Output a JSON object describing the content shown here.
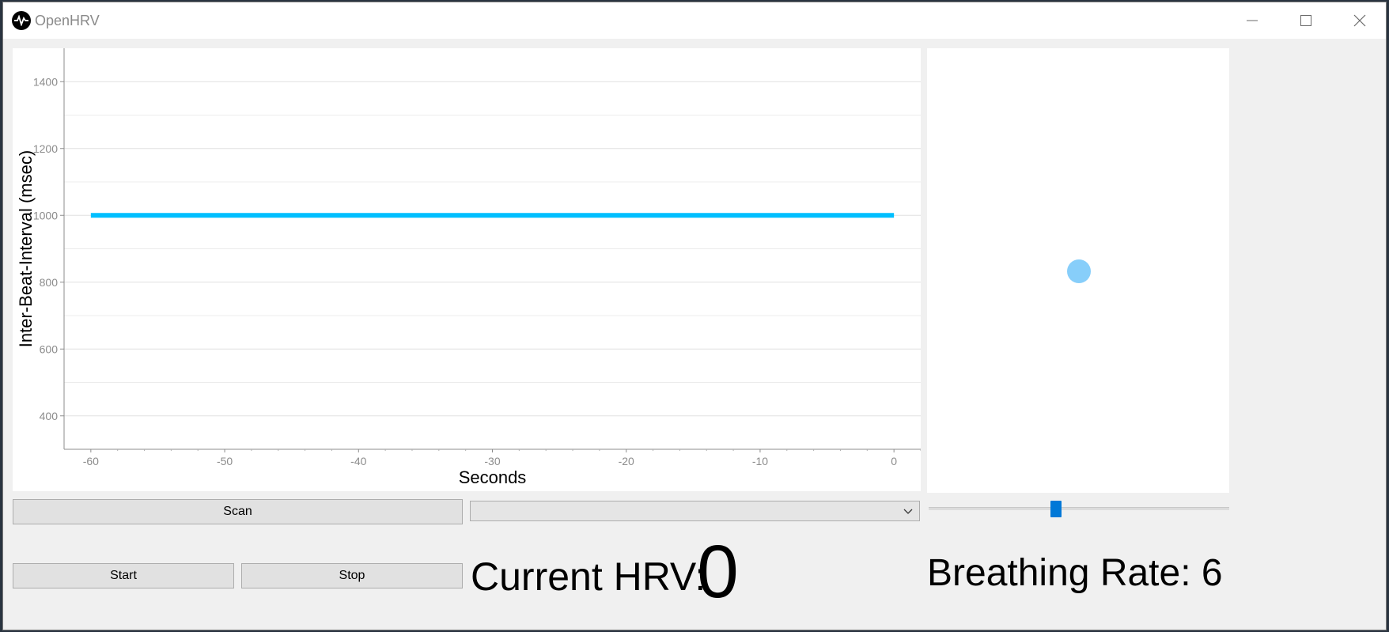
{
  "window": {
    "title": "OpenHRV",
    "controls": {
      "minimize": "minimize-icon",
      "maximize": "maximize-icon",
      "close": "close-icon"
    }
  },
  "chart_data": {
    "type": "line",
    "title": "",
    "xlabel": "Seconds",
    "ylabel": "Inter-Beat-Interval (msec)",
    "xlim": [
      -62,
      2
    ],
    "ylim": [
      300,
      1500
    ],
    "x_ticks": [
      -60,
      -50,
      -40,
      -30,
      -20,
      -10,
      0
    ],
    "y_ticks": [
      400,
      600,
      800,
      1000,
      1200,
      1400
    ],
    "grid": true,
    "series": [
      {
        "x": [
          -60,
          0
        ],
        "values": [
          1000,
          1000
        ],
        "color": "#00bfff"
      }
    ]
  },
  "pacer": {
    "dot_color": "#87cefa",
    "slider_value": 6
  },
  "controls": {
    "scan_label": "Scan",
    "device_selected": "",
    "start_label": "Start",
    "stop_label": "Stop"
  },
  "hrv": {
    "label": "Current HRV:",
    "value": "0"
  },
  "breathing": {
    "text": "Breathing Rate: 6"
  },
  "colors": {
    "accent": "#0078d7",
    "series": "#00bfff",
    "pacer": "#87cefa"
  }
}
